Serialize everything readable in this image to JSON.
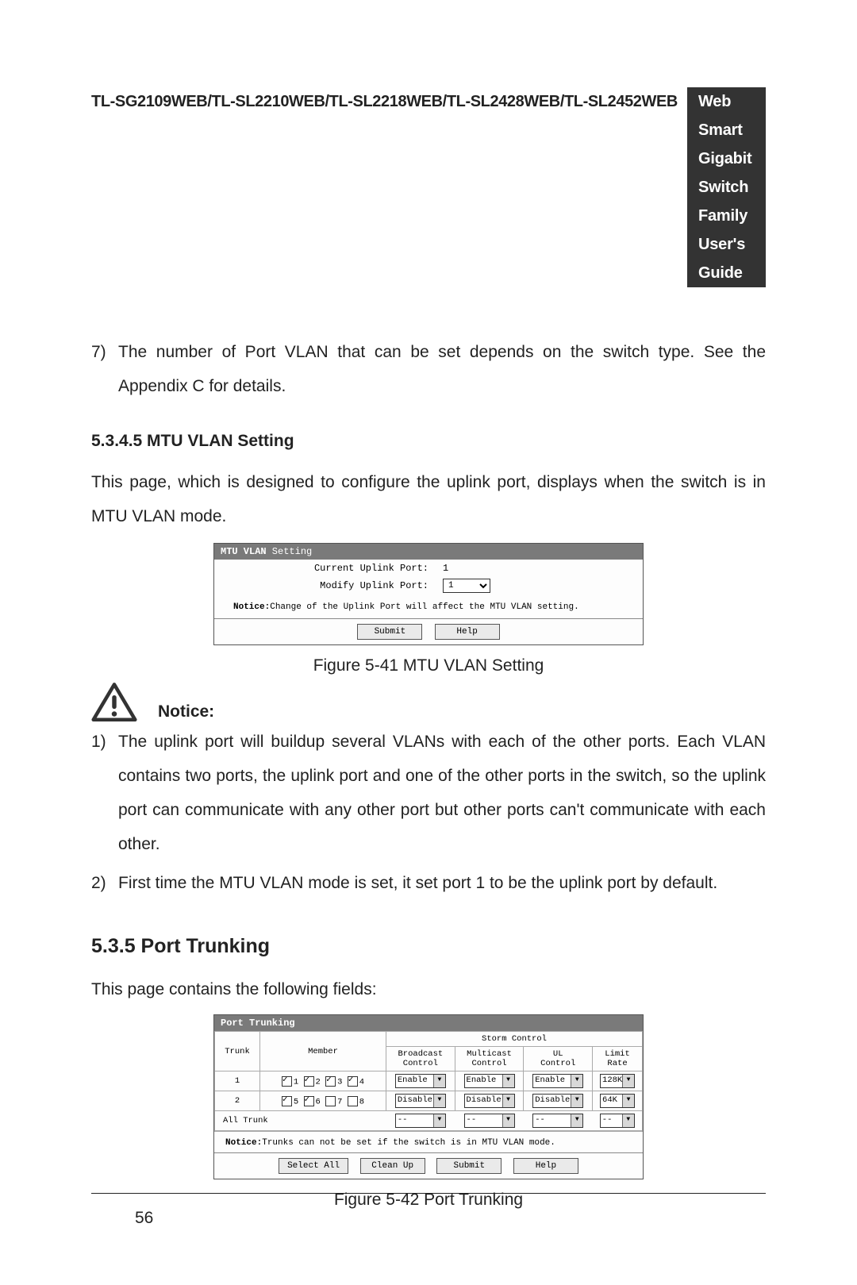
{
  "header": {
    "models": "TL-SG2109WEB/TL-SL2210WEB/TL-SL2218WEB/TL-SL2428WEB/TL-SL2452WEB",
    "guide": "Web Smart Gigabit Switch Family User's Guide"
  },
  "intro_item": {
    "num": "7)",
    "text": "The number of Port VLAN that can be set depends on the switch type. See the Appendix C for details."
  },
  "mtu_section": {
    "heading": "5.3.4.5  MTU VLAN Setting",
    "paragraph": "This page, which is designed to configure the uplink port, displays when the switch is in MTU VLAN mode.",
    "caption": "Figure 5-41 MTU VLAN Setting"
  },
  "mtu_screenshot": {
    "title_bold": "MTU VLAN",
    "title_rest": " Setting",
    "current_label": "Current Uplink Port:",
    "current_value": "1",
    "modify_label": "Modify Uplink Port:",
    "modify_value": "1",
    "notice_label": "Notice:",
    "notice_text": "Change of the Uplink Port will affect the MTU VLAN setting.",
    "btn_submit": "Submit",
    "btn_help": "Help"
  },
  "notice_block": {
    "label": "Notice:",
    "items": [
      {
        "num": "1)",
        "text": "The uplink port will buildup several VLANs with each of the other ports. Each VLAN contains two ports, the uplink port and one of the other ports in the switch, so the uplink port can communicate with any other port but other ports can't communicate with each other."
      },
      {
        "num": "2)",
        "text": "First time the MTU VLAN mode is set, it set port 1 to be the uplink port by default."
      }
    ]
  },
  "trunk_section": {
    "heading": "5.3.5  Port Trunking",
    "paragraph": "This page contains the following fields:",
    "caption": "Figure 5-42 Port Trunking"
  },
  "trunk_screenshot": {
    "title_bold": "Port Trunking",
    "storm_header": "Storm Control",
    "col_trunk": "Trunk",
    "col_member": "Member",
    "col_broadcast": "Broadcast\nControl",
    "col_multicast": "Multicast\nControl",
    "col_ul": "UL\nControl",
    "col_limit": "Limit\nRate",
    "rows": [
      {
        "trunk": "1",
        "members": [
          {
            "checked": true,
            "n": "1"
          },
          {
            "checked": true,
            "n": "2"
          },
          {
            "checked": true,
            "n": "3"
          },
          {
            "checked": true,
            "n": "4"
          }
        ],
        "broadcast": "Enable",
        "multicast": "Enable",
        "ul": "Enable",
        "limit": "128K"
      },
      {
        "trunk": "2",
        "members": [
          {
            "checked": true,
            "n": "5"
          },
          {
            "checked": true,
            "n": "6"
          },
          {
            "checked": false,
            "n": "7"
          },
          {
            "checked": false,
            "n": "8"
          }
        ],
        "broadcast": "Disable",
        "multicast": "Disable",
        "ul": "Disable",
        "limit": "64K"
      }
    ],
    "all_label": "All Trunk",
    "all_placeholder": "--",
    "notice_label": "Notice:",
    "notice_text": "Trunks can not be set if the switch is in MTU VLAN mode.",
    "btn_select_all": "Select All",
    "btn_clean_up": "Clean Up",
    "btn_submit": "Submit",
    "btn_help": "Help"
  },
  "page_number": "56"
}
